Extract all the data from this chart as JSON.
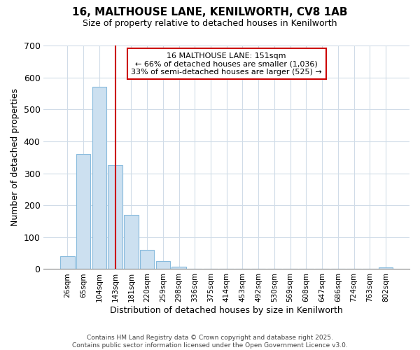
{
  "title1": "16, MALTHOUSE LANE, KENILWORTH, CV8 1AB",
  "title2": "Size of property relative to detached houses in Kenilworth",
  "xlabel": "Distribution of detached houses by size in Kenilworth",
  "ylabel": "Number of detached properties",
  "annotation_line1": "16 MALTHOUSE LANE: 151sqm",
  "annotation_line2": "← 66% of detached houses are smaller (1,036)",
  "annotation_line3": "33% of semi-detached houses are larger (525) →",
  "bar_labels": [
    "26sqm",
    "65sqm",
    "104sqm",
    "143sqm",
    "181sqm",
    "220sqm",
    "259sqm",
    "298sqm",
    "336sqm",
    "375sqm",
    "414sqm",
    "453sqm",
    "492sqm",
    "530sqm",
    "569sqm",
    "608sqm",
    "647sqm",
    "686sqm",
    "724sqm",
    "763sqm",
    "802sqm"
  ],
  "bar_values": [
    40,
    360,
    570,
    325,
    170,
    60,
    25,
    8,
    2,
    0,
    0,
    0,
    0,
    0,
    0,
    0,
    0,
    0,
    0,
    0,
    5
  ],
  "bar_color": "#cce0f0",
  "bar_edgecolor": "#88bbdd",
  "vline_color": "#cc0000",
  "background_color": "#ffffff",
  "grid_color": "#d0dce8",
  "annotation_box_color": "white",
  "annotation_box_edge": "#cc0000",
  "footer1": "Contains HM Land Registry data © Crown copyright and database right 2025.",
  "footer2": "Contains public sector information licensed under the Open Government Licence v3.0.",
  "ylim": [
    0,
    700
  ],
  "yticks": [
    0,
    100,
    200,
    300,
    400,
    500,
    600,
    700
  ]
}
